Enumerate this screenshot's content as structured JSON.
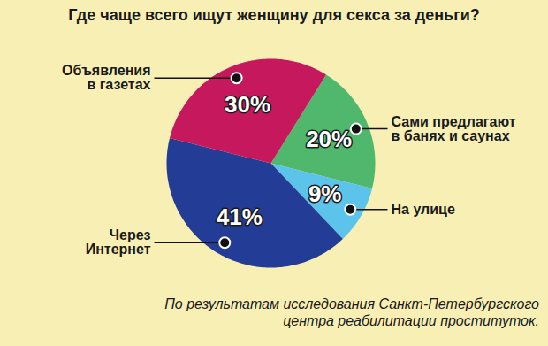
{
  "chart_data": {
    "type": "pie",
    "title": "Где чаще всего ищут женщину для секса за деньги?",
    "categories": [
      "Сами предлагают\nв банях и саунах",
      "На улице",
      "Через\nИнтернет",
      "Объявления\nв газетах"
    ],
    "values": [
      20,
      9,
      41,
      30
    ],
    "value_labels": [
      "20%",
      "9%",
      "41%",
      "30%"
    ],
    "colors": [
      "#4fb86d",
      "#5cc3ea",
      "#233d97",
      "#c6185c"
    ],
    "data_labels": true,
    "caption": "По результатам исследования Санкт-Петербургского центра реабилитации проституток."
  }
}
